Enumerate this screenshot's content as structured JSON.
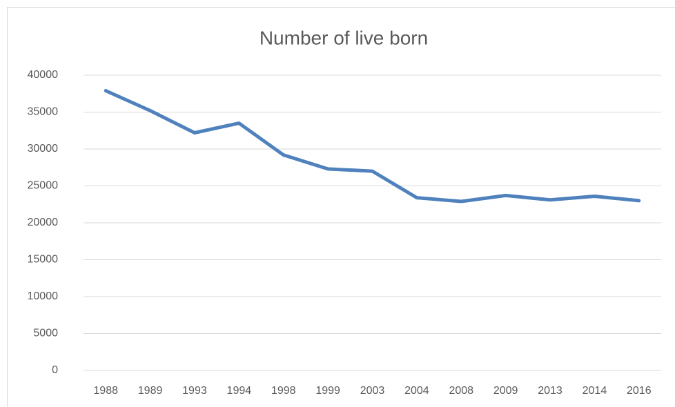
{
  "chart_data": {
    "type": "line",
    "title": "Number of live born",
    "categories": [
      "1988",
      "1989",
      "1993",
      "1994",
      "1998",
      "1999",
      "2003",
      "2004",
      "2008",
      "2009",
      "2013",
      "2014",
      "2016"
    ],
    "values": [
      37900,
      35200,
      32200,
      33500,
      29200,
      27300,
      27000,
      23400,
      22900,
      23700,
      23100,
      23600,
      23000
    ],
    "color": "#4f81bd",
    "ylim": [
      0,
      40000
    ],
    "yticks": [
      0,
      5000,
      10000,
      15000,
      20000,
      25000,
      30000,
      35000,
      40000
    ],
    "grid": true
  }
}
